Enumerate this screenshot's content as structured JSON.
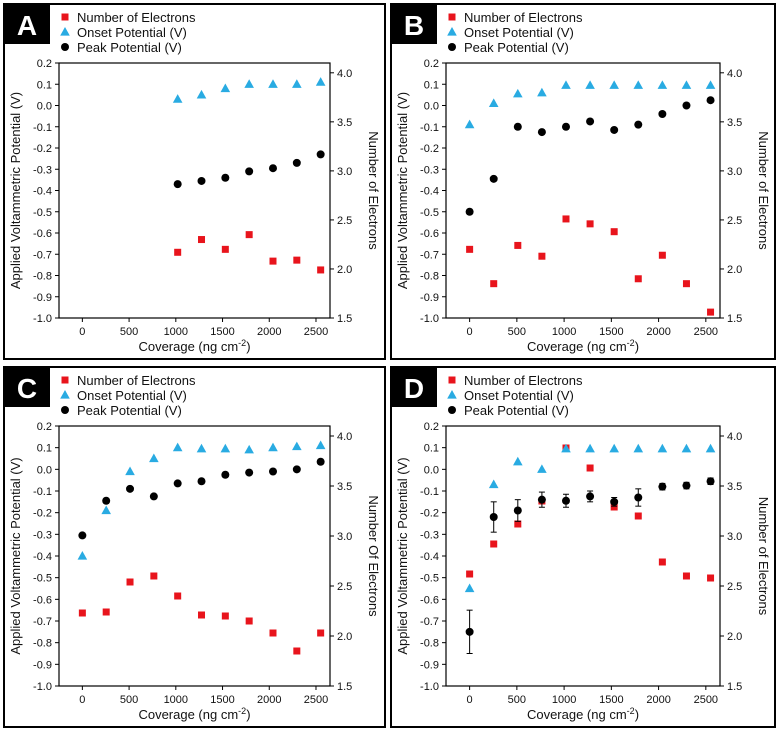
{
  "figure_kind": "four-panel scatter plot",
  "chart_data": [
    {
      "panel": "A",
      "type": "scatter",
      "xlabel": "Coverage (ng cm",
      "xlabel_sup": "-2",
      "xlabel_end": ")",
      "ylabel_left": "Applied Voltammetric Potential (V)",
      "ylabel_right": "Number of Electrons",
      "xlim": [
        -250,
        2650
      ],
      "ylim_left": [
        -1.0,
        0.2
      ],
      "ylim_right": [
        1.5,
        4.1
      ],
      "x_ticks": [
        "0",
        "500",
        "1000",
        "1500",
        "2000",
        "2500"
      ],
      "y_ticks_left": [
        "-1.0",
        "-0.9",
        "-0.8",
        "-0.7",
        "-0.6",
        "-0.5",
        "-0.4",
        "-0.3",
        "-0.2",
        "-0.1",
        "0.0",
        "0.1",
        "0.2"
      ],
      "y_ticks_right": [
        "1.5",
        "2.0",
        "2.5",
        "3.0",
        "3.5",
        "4.0"
      ],
      "legend": [
        {
          "label": "Number of Electrons",
          "marker": "square",
          "color": "#e8141c"
        },
        {
          "label": "Onset Potential (V)",
          "marker": "triangle",
          "color": "#29abe2"
        },
        {
          "label": "Peak Potential (V)",
          "marker": "circle",
          "color": "#000000"
        }
      ],
      "series": [
        {
          "name": "Number of Electrons",
          "axis": "right",
          "x": [
            1020,
            1275,
            1530,
            1785,
            2040,
            2295,
            2550
          ],
          "y": [
            2.17,
            2.3,
            2.2,
            2.35,
            2.08,
            2.09,
            1.99
          ]
        },
        {
          "name": "Onset Potential (V)",
          "axis": "left",
          "x": [
            1020,
            1275,
            1530,
            1785,
            2040,
            2295,
            2550
          ],
          "y": [
            0.03,
            0.05,
            0.08,
            0.1,
            0.1,
            0.1,
            0.11
          ]
        },
        {
          "name": "Peak Potential (V)",
          "axis": "left",
          "x": [
            1020,
            1275,
            1530,
            1785,
            2040,
            2295,
            2550
          ],
          "y": [
            -0.37,
            -0.355,
            -0.34,
            -0.31,
            -0.295,
            -0.27,
            -0.23
          ]
        }
      ]
    },
    {
      "panel": "B",
      "type": "scatter",
      "xlabel": "Coverage (ng cm",
      "xlabel_sup": "-2",
      "xlabel_end": ")",
      "ylabel_left": "Applied Voltammetric Potential (V)",
      "ylabel_right": "Number of Electrons",
      "xlim": [
        -250,
        2650
      ],
      "ylim_left": [
        -1.0,
        0.2
      ],
      "ylim_right": [
        1.5,
        4.1
      ],
      "x_ticks": [
        "0",
        "500",
        "1000",
        "1500",
        "2000",
        "2500"
      ],
      "y_ticks_left": [
        "-1.0",
        "-0.9",
        "-0.8",
        "-0.7",
        "-0.6",
        "-0.5",
        "-0.4",
        "-0.3",
        "-0.2",
        "-0.1",
        "0.0",
        "0.1",
        "0.2"
      ],
      "y_ticks_right": [
        "1.5",
        "2.0",
        "2.5",
        "3.0",
        "3.5",
        "4.0"
      ],
      "legend": [
        {
          "label": "Number of Electrons",
          "marker": "square",
          "color": "#e8141c"
        },
        {
          "label": "Onset Potential (V)",
          "marker": "triangle",
          "color": "#29abe2"
        },
        {
          "label": "Peak Potential (V)",
          "marker": "circle",
          "color": "#000000"
        }
      ],
      "series": [
        {
          "name": "Number of Electrons",
          "axis": "right",
          "x": [
            0,
            255,
            510,
            765,
            1020,
            1275,
            1530,
            1785,
            2040,
            2295,
            2550
          ],
          "y": [
            2.2,
            1.85,
            2.24,
            2.13,
            2.51,
            2.46,
            2.38,
            1.9,
            2.14,
            1.85,
            1.56
          ]
        },
        {
          "name": "Onset Potential (V)",
          "axis": "left",
          "x": [
            0,
            255,
            510,
            765,
            1020,
            1275,
            1530,
            1785,
            2040,
            2295,
            2550
          ],
          "y": [
            -0.09,
            0.01,
            0.055,
            0.06,
            0.095,
            0.095,
            0.095,
            0.095,
            0.095,
            0.095,
            0.095
          ]
        },
        {
          "name": "Peak Potential (V)",
          "axis": "left",
          "x": [
            0,
            255,
            510,
            765,
            1020,
            1275,
            1530,
            1785,
            2040,
            2295,
            2550
          ],
          "y": [
            -0.5,
            -0.345,
            -0.1,
            -0.125,
            -0.1,
            -0.075,
            -0.115,
            -0.09,
            -0.04,
            0.0,
            0.025
          ]
        }
      ]
    },
    {
      "panel": "C",
      "type": "scatter",
      "xlabel": "Coverage (ng cm",
      "xlabel_sup": "-2",
      "xlabel_end": ")",
      "ylabel_left": "Applied Voltammetric Potential (V)",
      "ylabel_right": "Number Of Electrons",
      "xlim": [
        -250,
        2650
      ],
      "ylim_left": [
        -1.0,
        0.2
      ],
      "ylim_right": [
        1.5,
        4.1
      ],
      "x_ticks": [
        "0",
        "500",
        "1000",
        "1500",
        "2000",
        "2500"
      ],
      "y_ticks_left": [
        "-1.0",
        "-0.9",
        "-0.8",
        "-0.7",
        "-0.6",
        "-0.5",
        "-0.4",
        "-0.3",
        "-0.2",
        "-0.1",
        "0.0",
        "0.1",
        "0.2"
      ],
      "y_ticks_right": [
        "1.5",
        "2.0",
        "2.5",
        "3.0",
        "3.5",
        "4.0"
      ],
      "legend": [
        {
          "label": "Number of Electrons",
          "marker": "square",
          "color": "#e8141c"
        },
        {
          "label": "Onset Potential (V)",
          "marker": "triangle",
          "color": "#29abe2"
        },
        {
          "label": "Peak Potential (V)",
          "marker": "circle",
          "color": "#000000"
        }
      ],
      "series": [
        {
          "name": "Number of Electrons",
          "axis": "right",
          "x": [
            0,
            255,
            510,
            765,
            1020,
            1275,
            1530,
            1785,
            2040,
            2295,
            2550
          ],
          "y": [
            2.23,
            2.24,
            2.54,
            2.6,
            2.4,
            2.21,
            2.2,
            2.15,
            2.03,
            1.85,
            2.03
          ]
        },
        {
          "name": "Onset Potential (V)",
          "axis": "left",
          "x": [
            0,
            255,
            510,
            765,
            1020,
            1275,
            1530,
            1785,
            2040,
            2295,
            2550
          ],
          "y": [
            -0.4,
            -0.19,
            -0.01,
            0.05,
            0.1,
            0.095,
            0.095,
            0.09,
            0.1,
            0.105,
            0.11
          ]
        },
        {
          "name": "Peak Potential (V)",
          "axis": "left",
          "x": [
            0,
            255,
            510,
            765,
            1020,
            1275,
            1530,
            1785,
            2040,
            2295,
            2550
          ],
          "y": [
            -0.305,
            -0.145,
            -0.09,
            -0.125,
            -0.065,
            -0.055,
            -0.025,
            -0.015,
            -0.01,
            0.0,
            0.035
          ]
        }
      ]
    },
    {
      "panel": "D",
      "type": "scatter",
      "xlabel": "Coverage (ng cm",
      "xlabel_sup": "-2",
      "xlabel_end": ")",
      "ylabel_left": "Applied Voltammetric Potential (V)",
      "ylabel_right": "Number of Electrons",
      "xlim": [
        -250,
        2650
      ],
      "ylim_left": [
        -1.0,
        0.2
      ],
      "ylim_right": [
        1.5,
        4.1
      ],
      "x_ticks": [
        "0",
        "500",
        "1000",
        "1500",
        "2000",
        "2500"
      ],
      "y_ticks_left": [
        "-1.0",
        "-0.9",
        "-0.8",
        "-0.7",
        "-0.6",
        "-0.5",
        "-0.4",
        "-0.3",
        "-0.2",
        "-0.1",
        "0.0",
        "0.1",
        "0.2"
      ],
      "y_ticks_right": [
        "1.5",
        "2.0",
        "2.5",
        "3.0",
        "3.5",
        "4.0"
      ],
      "legend": [
        {
          "label": "Number of Electrons",
          "marker": "square",
          "color": "#e8141c"
        },
        {
          "label": "Onset Potential (V)",
          "marker": "triangle",
          "color": "#29abe2"
        },
        {
          "label": "Peak Potential (V)",
          "marker": "circle",
          "color": "#000000"
        }
      ],
      "series": [
        {
          "name": "Number of Electrons",
          "axis": "right",
          "x": [
            0,
            255,
            510,
            765,
            1020,
            1275,
            1530,
            1785,
            2040,
            2295,
            2550
          ],
          "y": [
            2.62,
            2.92,
            3.12,
            3.35,
            3.88,
            3.68,
            3.29,
            3.2,
            2.74,
            2.6,
            2.58
          ]
        },
        {
          "name": "Onset Potential (V)",
          "axis": "left",
          "x": [
            0,
            255,
            510,
            765,
            1020,
            1275,
            1530,
            1785,
            2040,
            2295,
            2550
          ],
          "y": [
            -0.55,
            -0.07,
            0.035,
            0.0,
            0.095,
            0.095,
            0.095,
            0.095,
            0.095,
            0.095,
            0.095
          ]
        },
        {
          "name": "Peak Potential (V)",
          "axis": "left",
          "x": [
            0,
            255,
            510,
            765,
            1020,
            1275,
            1530,
            1785,
            2040,
            2295,
            2550
          ],
          "y": [
            -0.75,
            -0.22,
            -0.19,
            -0.14,
            -0.145,
            -0.125,
            -0.15,
            -0.13,
            -0.08,
            -0.075,
            -0.055
          ],
          "err": [
            0.1,
            0.07,
            0.05,
            0.035,
            0.03,
            0.025,
            0.02,
            0.04,
            0.015,
            0.015,
            0.015
          ]
        }
      ]
    }
  ]
}
